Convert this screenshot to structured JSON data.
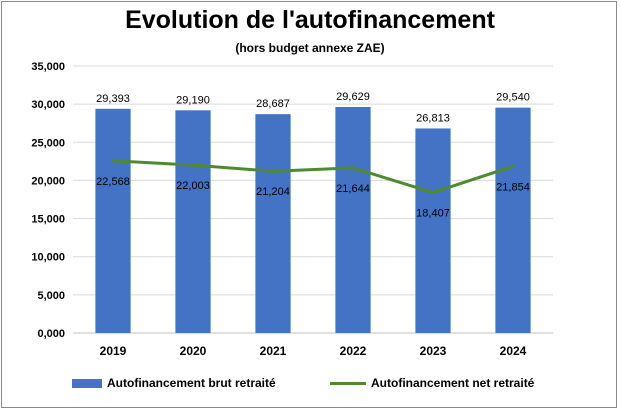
{
  "chart_data": {
    "type": "bar",
    "title": "Evolution de l'autofinancement",
    "subtitle": "(hors budget annexe ZAE)",
    "categories": [
      "2019",
      "2020",
      "2021",
      "2022",
      "2023",
      "2024"
    ],
    "ylim": [
      0,
      35000
    ],
    "yticks": [
      "0,000",
      "5,000",
      "10,000",
      "15,000",
      "20,000",
      "25,000",
      "30,000",
      "35,000"
    ],
    "grid": true,
    "legend_position": "bottom",
    "series": [
      {
        "name": "Autofinancement brut retraité",
        "type": "bar",
        "color": "#4472c4",
        "values": [
          29393,
          29190,
          28687,
          29629,
          26813,
          29540
        ],
        "labels": [
          "29,393",
          "29,190",
          "28,687",
          "29,629",
          "26,813",
          "29,540"
        ]
      },
      {
        "name": "Autofinancement net retraité",
        "type": "line",
        "color": "#4e8a2e",
        "values": [
          22568,
          22003,
          21204,
          21644,
          18407,
          21854
        ],
        "labels": [
          "22,568",
          "22,003",
          "21,204",
          "21,644",
          "18,407",
          "21,854"
        ]
      }
    ]
  }
}
